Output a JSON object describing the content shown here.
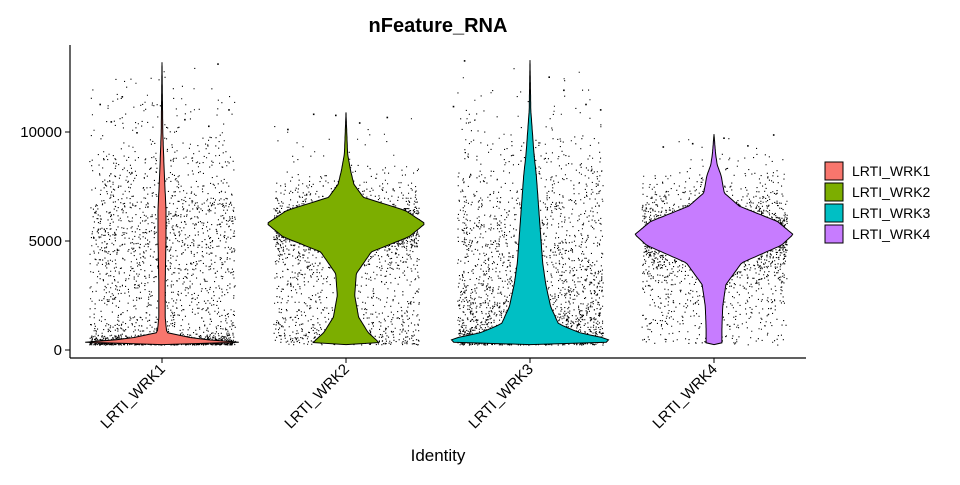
{
  "chart_data": {
    "type": "violin",
    "title": "nFeature_RNA",
    "xlabel": "Identity",
    "ylabel": "",
    "categories": [
      "LRTI_WRK1",
      "LRTI_WRK2",
      "LRTI_WRK3",
      "LRTI_WRK4"
    ],
    "ylim": [
      -400,
      13800
    ],
    "yticks": [
      "0",
      "5000",
      "10000"
    ],
    "grid": false,
    "legend_position": "right",
    "series": [
      {
        "name": "LRTI_WRK1",
        "color": "#F8766D",
        "min": 250,
        "max": 13200,
        "density": [
          [
            250,
            0.0
          ],
          [
            300,
            0.95
          ],
          [
            350,
            1.0
          ],
          [
            500,
            0.45
          ],
          [
            800,
            0.06
          ],
          [
            1500,
            0.04
          ],
          [
            3000,
            0.04
          ],
          [
            5000,
            0.05
          ],
          [
            6500,
            0.05
          ],
          [
            8000,
            0.03
          ],
          [
            10000,
            0.01
          ],
          [
            13200,
            0.0
          ]
        ],
        "outliers": [
          [
            -0.34,
            11300
          ],
          [
            -0.28,
            10500
          ],
          [
            -0.14,
            10000
          ],
          [
            0.3,
            13150
          ],
          [
            -0.22,
            11650
          ],
          [
            0.25,
            10300
          ],
          [
            0.36,
            11050
          ],
          [
            0.12,
            10600
          ]
        ]
      },
      {
        "name": "LRTI_WRK2",
        "color": "#7CAE00",
        "min": 250,
        "max": 10900,
        "density": [
          [
            250,
            0.0
          ],
          [
            300,
            0.42
          ],
          [
            400,
            0.4
          ],
          [
            800,
            0.28
          ],
          [
            1500,
            0.16
          ],
          [
            2500,
            0.11
          ],
          [
            3500,
            0.13
          ],
          [
            4500,
            0.32
          ],
          [
            5200,
            0.8
          ],
          [
            5800,
            1.0
          ],
          [
            6400,
            0.75
          ],
          [
            7000,
            0.22
          ],
          [
            7600,
            0.1
          ],
          [
            8200,
            0.06
          ],
          [
            9000,
            0.02
          ],
          [
            10900,
            0.0
          ]
        ],
        "outliers": [
          [
            -0.18,
            10850
          ],
          [
            -0.06,
            10800
          ],
          [
            0.07,
            10450
          ],
          [
            0.22,
            10700
          ],
          [
            -0.32,
            10150
          ]
        ]
      },
      {
        "name": "LRTI_WRK3",
        "color": "#00BFC4",
        "min": 250,
        "max": 13300,
        "density": [
          [
            250,
            0.0
          ],
          [
            300,
            0.95
          ],
          [
            500,
            1.0
          ],
          [
            800,
            0.62
          ],
          [
            1200,
            0.36
          ],
          [
            2000,
            0.26
          ],
          [
            3000,
            0.2
          ],
          [
            4000,
            0.16
          ],
          [
            5000,
            0.14
          ],
          [
            6000,
            0.12
          ],
          [
            7000,
            0.1
          ],
          [
            8000,
            0.08
          ],
          [
            9000,
            0.05
          ],
          [
            10000,
            0.03
          ],
          [
            11000,
            0.01
          ],
          [
            13300,
            0.0
          ]
        ],
        "outliers": [
          [
            -0.36,
            13300
          ],
          [
            -0.42,
            11200
          ],
          [
            0.18,
            11950
          ],
          [
            0.3,
            11300
          ],
          [
            0.38,
            11050
          ],
          [
            0.1,
            12550
          ]
        ]
      },
      {
        "name": "LRTI_WRK4",
        "color": "#C77CFF",
        "min": 250,
        "max": 9900,
        "density": [
          [
            250,
            0.0
          ],
          [
            300,
            0.1
          ],
          [
            1000,
            0.1
          ],
          [
            2000,
            0.11
          ],
          [
            3000,
            0.15
          ],
          [
            4000,
            0.35
          ],
          [
            4800,
            0.85
          ],
          [
            5300,
            1.0
          ],
          [
            5900,
            0.8
          ],
          [
            6600,
            0.32
          ],
          [
            7200,
            0.13
          ],
          [
            8000,
            0.09
          ],
          [
            8500,
            0.04
          ],
          [
            9000,
            0.02
          ],
          [
            9900,
            0.0
          ]
        ],
        "outliers": [
          [
            -0.28,
            9350
          ],
          [
            0.05,
            9750
          ],
          [
            0.32,
            9900
          ],
          [
            0.18,
            9400
          ],
          [
            -0.12,
            9500
          ]
        ]
      }
    ]
  }
}
